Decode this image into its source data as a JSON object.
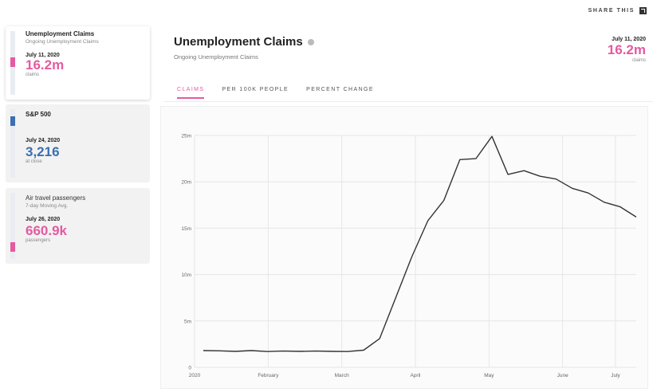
{
  "share": {
    "label": "SHARE THIS",
    "icon": "share-icon"
  },
  "sidebar": {
    "cards": [
      {
        "title": "Unemployment Claims",
        "subtitle": "Ongoing Unemployment Claims",
        "date": "July 11, 2020",
        "value": "16.2m",
        "unit": "claims",
        "color": "#e55aa0",
        "level": 0.52
      },
      {
        "title": "S&P 500",
        "subtitle": "",
        "date": "July 24, 2020",
        "value": "3,216",
        "unit": "at close",
        "color": "#3a6fb0",
        "level": 0.88
      },
      {
        "title": "Air travel passengers",
        "subtitle": "7-day Moving Avg.",
        "date": "July 26, 2020",
        "value": "660.9k",
        "unit": "passengers",
        "color": "#e55aa0",
        "level": 0.12
      }
    ]
  },
  "header": {
    "title": "Unemployment Claims",
    "subtitle": "Ongoing Unemployment Claims",
    "date": "July 11, 2020",
    "value": "16.2m",
    "unit": "claims",
    "accent": "#e55aa0"
  },
  "tabs": [
    {
      "label": "CLAIMS",
      "active": true
    },
    {
      "label": "PER 100K PEOPLE",
      "active": false
    },
    {
      "label": "PERCENT CHANGE",
      "active": false
    }
  ],
  "chart_data": {
    "type": "line",
    "title": "",
    "xlabel": "",
    "ylabel": "",
    "x_ticks": [
      "2020",
      "February",
      "March",
      "April",
      "May",
      "June",
      "July"
    ],
    "y_ticks": [
      "0",
      "5m",
      "10m",
      "15m",
      "20m",
      "25m"
    ],
    "ylim": [
      0,
      25
    ],
    "grid": true,
    "series": [
      {
        "values": [
          1.8,
          1.78,
          1.72,
          1.8,
          1.7,
          1.75,
          1.72,
          1.75,
          1.72,
          1.7,
          1.85,
          3.1,
          7.5,
          11.9,
          15.8,
          18.0,
          22.4,
          22.5,
          24.9,
          20.8,
          21.2,
          20.6,
          20.3,
          19.3,
          18.8,
          17.8,
          17.3,
          16.2
        ],
        "color": "#333333"
      }
    ]
  }
}
